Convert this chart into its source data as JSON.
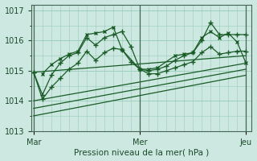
{
  "bg_color": "#cce8e0",
  "grid_color": "#99ccbb",
  "line_color": "#1a5c28",
  "ylim": [
    1013.0,
    1017.2
  ],
  "yticks": [
    1013,
    1014,
    1015,
    1016,
    1017
  ],
  "xlabel": "Pression niveau de la mer( hPa )",
  "xtick_labels": [
    "Mar",
    "Mer",
    "Jeu"
  ],
  "xtick_positions": [
    0.0,
    1.0,
    2.0
  ],
  "xlim": [
    -0.02,
    2.05
  ],
  "series": [
    {
      "x": [
        0.0,
        0.083,
        0.167,
        0.25,
        0.333,
        0.417,
        0.5,
        0.583,
        0.667,
        0.75,
        0.833,
        0.917,
        1.0,
        1.083,
        1.167,
        1.25,
        1.333,
        1.417,
        1.5,
        1.583,
        1.667,
        1.75,
        1.833,
        1.917,
        2.0
      ],
      "y": [
        1014.95,
        1014.2,
        1014.85,
        1015.25,
        1015.5,
        1015.6,
        1016.1,
        1015.85,
        1016.1,
        1016.2,
        1016.3,
        1015.8,
        1015.05,
        1015.0,
        1015.05,
        1015.15,
        1015.35,
        1015.5,
        1015.6,
        1016.0,
        1016.6,
        1016.2,
        1016.2,
        1016.2,
        1016.2
      ],
      "marker": "+"
    },
    {
      "x": [
        0.0,
        0.083,
        0.167,
        0.25,
        0.333,
        0.417,
        0.5,
        0.583,
        0.667,
        0.75,
        0.833,
        0.917,
        1.0,
        1.083,
        1.167,
        1.25,
        1.333,
        1.417,
        1.5,
        1.583,
        1.667,
        1.75,
        1.833,
        1.917,
        2.0
      ],
      "y": [
        1014.95,
        1014.05,
        1014.45,
        1014.75,
        1015.05,
        1015.25,
        1015.65,
        1015.35,
        1015.6,
        1015.75,
        1015.7,
        1015.3,
        1015.05,
        1014.9,
        1014.9,
        1015.0,
        1015.1,
        1015.2,
        1015.3,
        1015.6,
        1015.8,
        1015.55,
        1015.6,
        1015.65,
        1015.65
      ],
      "marker": "+"
    },
    {
      "x": [
        0.0,
        2.0
      ],
      "y": [
        1014.95,
        1015.5
      ],
      "marker": null
    },
    {
      "x": [
        0.0,
        2.0
      ],
      "y": [
        1014.0,
        1015.25
      ],
      "marker": null
    },
    {
      "x": [
        0.0,
        2.0
      ],
      "y": [
        1013.75,
        1015.05
      ],
      "marker": null
    },
    {
      "x": [
        0.0,
        2.0
      ],
      "y": [
        1013.5,
        1014.85
      ],
      "marker": null
    },
    {
      "x": [
        0.083,
        0.167,
        0.25,
        0.333,
        0.417,
        0.5,
        0.583,
        0.667,
        0.75,
        0.833,
        1.0,
        1.083,
        1.167,
        1.333,
        1.417,
        1.5,
        1.583,
        1.667,
        1.75,
        1.833,
        1.917,
        2.0
      ],
      "y": [
        1014.9,
        1015.2,
        1015.4,
        1015.55,
        1015.65,
        1016.2,
        1016.25,
        1016.3,
        1016.45,
        1015.7,
        1015.05,
        1015.05,
        1015.1,
        1015.5,
        1015.55,
        1015.6,
        1016.1,
        1016.3,
        1016.1,
        1016.25,
        1015.95,
        1015.25
      ],
      "marker": "x"
    }
  ]
}
